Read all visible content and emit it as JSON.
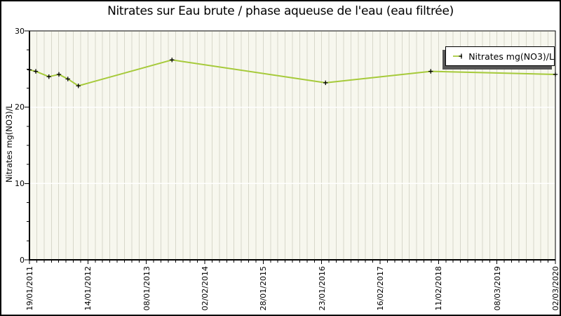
{
  "title": "Nitrates sur Eau brute / phase aqueuse de l'eau (eau filtrée)",
  "y_axis": {
    "title": "Nitrates mg(NO3)/L"
  },
  "legend": {
    "label": "Nitrates mg(NO3)/L"
  },
  "colors": {
    "line": "#a6ca3a",
    "marker": "#000000",
    "plot_bg": "#f7f7ee",
    "grid": "#d7d7ca",
    "major_hgrid": "#ffffff",
    "axis": "#000000",
    "legend_shadow": "#555555"
  },
  "chart_data": {
    "type": "line",
    "title": "Nitrates sur Eau brute / phase aqueuse de l'eau (eau filtrée)",
    "xlabel": "",
    "ylabel": "Nitrates mg(NO3)/L",
    "ylim": [
      0,
      30
    ],
    "y_major_ticks": [
      0,
      10,
      20,
      30
    ],
    "y_minor_step": 2.5,
    "x_tick_labels": [
      "19/01/2011",
      "14/01/2012",
      "08/01/2013",
      "02/02/2014",
      "28/01/2015",
      "23/01/2016",
      "16/02/2017",
      "11/02/2018",
      "08/03/2019",
      "02/03/2020"
    ],
    "x_minor_per_major": 8,
    "grid": "vertical-minor-lines, faint horizontal lines at major y ticks",
    "legend_position": "top-right",
    "series": [
      {
        "name": "Nitrates mg(NO3)/L",
        "marker": "plus",
        "points": [
          {
            "date_est": "19/01/2011",
            "x_frac": 0.0,
            "value": 24.9
          },
          {
            "date_est": "28/02/2011",
            "x_frac": 0.012,
            "value": 24.7
          },
          {
            "date_est": "20/05/2011",
            "x_frac": 0.037,
            "value": 24.0
          },
          {
            "date_est": "19/07/2011",
            "x_frac": 0.056,
            "value": 24.3
          },
          {
            "date_est": "14/09/2011",
            "x_frac": 0.073,
            "value": 23.7
          },
          {
            "date_est": "17/11/2011",
            "x_frac": 0.093,
            "value": 22.8
          },
          {
            "date_est": "27/06/2013",
            "x_frac": 0.271,
            "value": 26.2
          },
          {
            "date_est": "17/02/2016",
            "x_frac": 0.563,
            "value": 23.2
          },
          {
            "date_est": "24/12/2017",
            "x_frac": 0.763,
            "value": 24.7
          },
          {
            "date_est": "02/03/2020",
            "x_frac": 1.0,
            "value": 24.3
          }
        ]
      }
    ]
  }
}
